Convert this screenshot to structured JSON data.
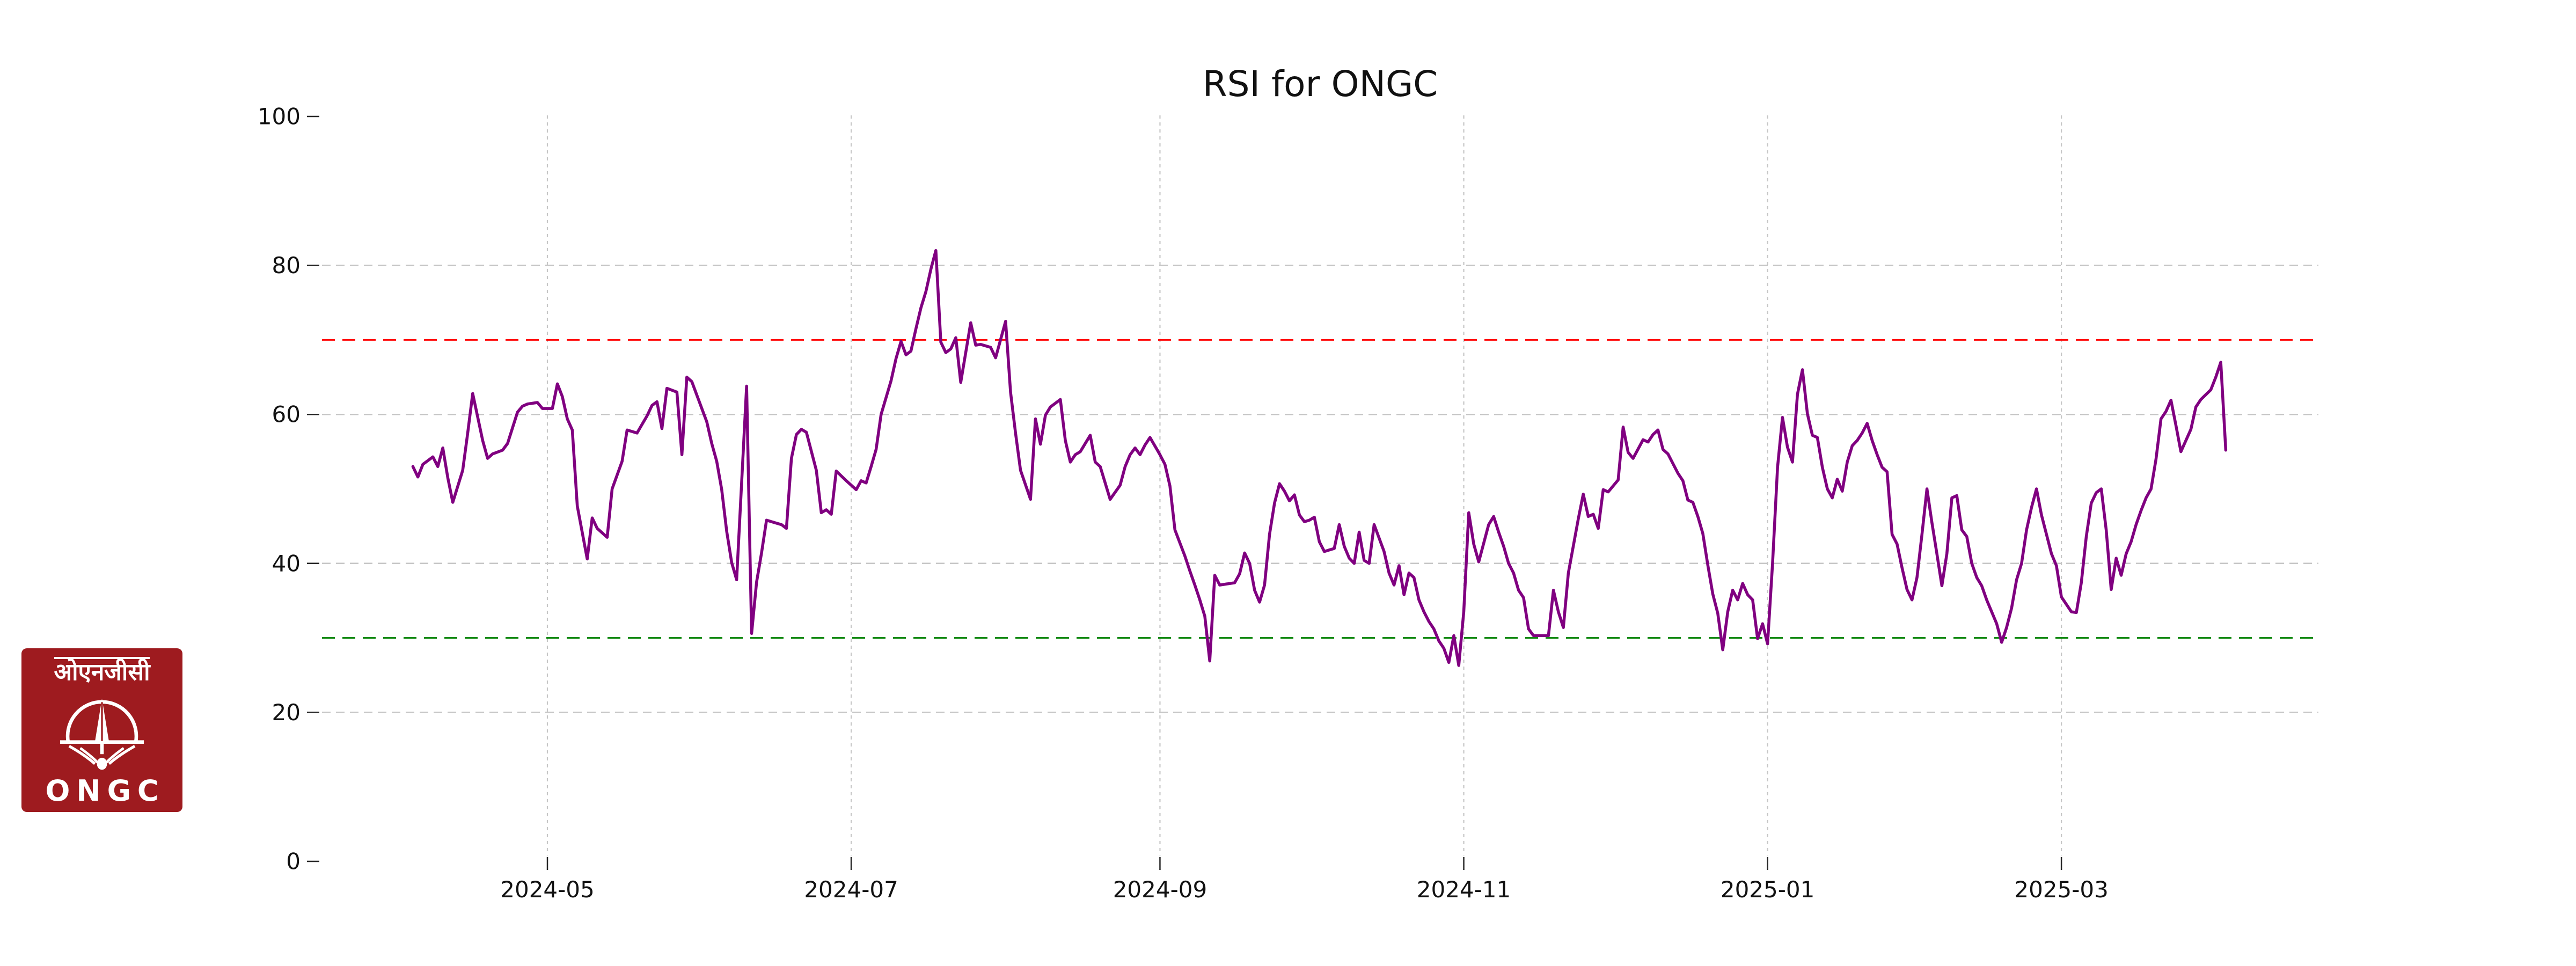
{
  "chart_data": {
    "type": "line",
    "title": "RSI for ONGC",
    "series_name": "RSI",
    "line_color": "#800080",
    "grid_color": "#c6c6c6",
    "tick_color": "#262626",
    "text_color": "#111111",
    "ylim": [
      0,
      100
    ],
    "y_ticks": [
      0,
      20,
      40,
      60,
      80,
      100
    ],
    "grid_y_values": [
      20,
      40,
      60,
      80
    ],
    "x_tick_labels": [
      "2024-05",
      "2024-07",
      "2024-09",
      "2024-11",
      "2025-01",
      "2025-03"
    ],
    "x_tick_dates": [
      "2024-05-01",
      "2024-07-01",
      "2024-09-01",
      "2024-11-01",
      "2025-01-01",
      "2025-03-01"
    ],
    "overbought": {
      "value": 70,
      "color": "#ff0000"
    },
    "oversold": {
      "value": 30,
      "color": "#008000"
    },
    "legend": "none",
    "grid": "on",
    "points": [
      [
        "2024-04-04",
        53.0
      ],
      [
        "2024-04-05",
        51.6
      ],
      [
        "2024-04-06",
        53.3
      ],
      [
        "2024-04-07",
        53.8
      ],
      [
        "2024-04-08",
        54.3
      ],
      [
        "2024-04-09",
        53.0
      ],
      [
        "2024-04-10",
        55.5
      ],
      [
        "2024-04-11",
        51.5
      ],
      [
        "2024-04-12",
        48.2
      ],
      [
        "2024-04-14",
        52.5
      ],
      [
        "2024-04-15",
        57.5
      ],
      [
        "2024-04-16",
        62.8
      ],
      [
        "2024-04-18",
        56.5
      ],
      [
        "2024-04-19",
        54.1
      ],
      [
        "2024-04-20",
        54.7
      ],
      [
        "2024-04-22",
        55.2
      ],
      [
        "2024-04-23",
        56.1
      ],
      [
        "2024-04-25",
        60.3
      ],
      [
        "2024-04-26",
        61.1
      ],
      [
        "2024-04-27",
        61.4
      ],
      [
        "2024-04-29",
        61.6
      ],
      [
        "2024-04-30",
        60.8
      ],
      [
        "2024-05-02",
        60.8
      ],
      [
        "2024-05-03",
        64.1
      ],
      [
        "2024-05-04",
        62.4
      ],
      [
        "2024-05-05",
        59.4
      ],
      [
        "2024-05-06",
        57.9
      ],
      [
        "2024-05-07",
        47.7
      ],
      [
        "2024-05-09",
        40.6
      ],
      [
        "2024-05-10",
        46.1
      ],
      [
        "2024-05-11",
        44.7
      ],
      [
        "2024-05-13",
        43.5
      ],
      [
        "2024-05-14",
        50.0
      ],
      [
        "2024-05-16",
        53.7
      ],
      [
        "2024-05-17",
        57.9
      ],
      [
        "2024-05-19",
        57.5
      ],
      [
        "2024-05-21",
        59.8
      ],
      [
        "2024-05-22",
        61.2
      ],
      [
        "2024-05-23",
        61.7
      ],
      [
        "2024-05-24",
        58.1
      ],
      [
        "2024-05-25",
        63.5
      ],
      [
        "2024-05-27",
        63.0
      ],
      [
        "2024-05-28",
        54.6
      ],
      [
        "2024-05-29",
        65.0
      ],
      [
        "2024-05-30",
        64.4
      ],
      [
        "2024-06-02",
        59.0
      ],
      [
        "2024-06-03",
        56.1
      ],
      [
        "2024-06-04",
        53.7
      ],
      [
        "2024-06-05",
        49.9
      ],
      [
        "2024-06-06",
        44.3
      ],
      [
        "2024-06-07",
        40.1
      ],
      [
        "2024-06-08",
        37.8
      ],
      [
        "2024-06-10",
        63.8
      ],
      [
        "2024-06-11",
        30.6
      ],
      [
        "2024-06-12",
        37.5
      ],
      [
        "2024-06-13",
        41.4
      ],
      [
        "2024-06-14",
        45.8
      ],
      [
        "2024-06-15",
        45.6
      ],
      [
        "2024-06-17",
        45.2
      ],
      [
        "2024-06-18",
        44.7
      ],
      [
        "2024-06-19",
        54.1
      ],
      [
        "2024-06-20",
        57.3
      ],
      [
        "2024-06-21",
        58.0
      ],
      [
        "2024-06-22",
        57.6
      ],
      [
        "2024-06-24",
        52.5
      ],
      [
        "2024-06-25",
        46.8
      ],
      [
        "2024-06-26",
        47.2
      ],
      [
        "2024-06-27",
        46.6
      ],
      [
        "2024-06-28",
        52.4
      ],
      [
        "2024-06-30",
        51.1
      ],
      [
        "2024-07-01",
        50.5
      ],
      [
        "2024-07-02",
        49.9
      ],
      [
        "2024-07-03",
        51.1
      ],
      [
        "2024-07-04",
        50.8
      ],
      [
        "2024-07-05",
        53.0
      ],
      [
        "2024-07-06",
        55.3
      ],
      [
        "2024-07-07",
        60.0
      ],
      [
        "2024-07-09",
        64.5
      ],
      [
        "2024-07-10",
        67.5
      ],
      [
        "2024-07-11",
        69.8
      ],
      [
        "2024-07-12",
        68.0
      ],
      [
        "2024-07-13",
        68.5
      ],
      [
        "2024-07-14",
        71.5
      ],
      [
        "2024-07-15",
        74.3
      ],
      [
        "2024-07-16",
        76.5
      ],
      [
        "2024-07-17",
        79.5
      ],
      [
        "2024-07-18",
        82.0
      ],
      [
        "2024-07-19",
        69.7
      ],
      [
        "2024-07-20",
        68.3
      ],
      [
        "2024-07-21",
        68.8
      ],
      [
        "2024-07-22",
        70.3
      ],
      [
        "2024-07-23",
        64.3
      ],
      [
        "2024-07-25",
        72.3
      ],
      [
        "2024-07-26",
        69.3
      ],
      [
        "2024-07-27",
        69.4
      ],
      [
        "2024-07-29",
        69.0
      ],
      [
        "2024-07-30",
        67.6
      ],
      [
        "2024-08-01",
        72.5
      ],
      [
        "2024-08-02",
        63.0
      ],
      [
        "2024-08-03",
        57.5
      ],
      [
        "2024-08-04",
        52.5
      ],
      [
        "2024-08-06",
        48.6
      ],
      [
        "2024-08-07",
        59.4
      ],
      [
        "2024-08-08",
        56.0
      ],
      [
        "2024-08-09",
        59.9
      ],
      [
        "2024-08-10",
        61.0
      ],
      [
        "2024-08-12",
        62.0
      ],
      [
        "2024-08-13",
        56.5
      ],
      [
        "2024-08-14",
        53.6
      ],
      [
        "2024-08-15",
        54.6
      ],
      [
        "2024-08-16",
        55.0
      ],
      [
        "2024-08-18",
        57.2
      ],
      [
        "2024-08-19",
        53.6
      ],
      [
        "2024-08-20",
        53.0
      ],
      [
        "2024-08-22",
        48.6
      ],
      [
        "2024-08-24",
        50.5
      ],
      [
        "2024-08-25",
        53.0
      ],
      [
        "2024-08-26",
        54.6
      ],
      [
        "2024-08-27",
        55.5
      ],
      [
        "2024-08-28",
        54.6
      ],
      [
        "2024-08-29",
        55.9
      ],
      [
        "2024-08-30",
        56.9
      ],
      [
        "2024-09-01",
        54.6
      ],
      [
        "2024-09-02",
        53.3
      ],
      [
        "2024-09-03",
        50.4
      ],
      [
        "2024-09-04",
        44.5
      ],
      [
        "2024-09-06",
        41.0
      ],
      [
        "2024-09-07",
        39.0
      ],
      [
        "2024-09-08",
        37.1
      ],
      [
        "2024-09-09",
        35.1
      ],
      [
        "2024-09-10",
        32.9
      ],
      [
        "2024-09-11",
        26.9
      ],
      [
        "2024-09-12",
        38.4
      ],
      [
        "2024-09-13",
        37.1
      ],
      [
        "2024-09-16",
        37.4
      ],
      [
        "2024-09-17",
        38.6
      ],
      [
        "2024-09-18",
        41.4
      ],
      [
        "2024-09-19",
        40.0
      ],
      [
        "2024-09-20",
        36.4
      ],
      [
        "2024-09-21",
        34.8
      ],
      [
        "2024-09-22",
        37.1
      ],
      [
        "2024-09-23",
        43.9
      ],
      [
        "2024-09-24",
        48.1
      ],
      [
        "2024-09-25",
        50.7
      ],
      [
        "2024-09-26",
        49.7
      ],
      [
        "2024-09-27",
        48.4
      ],
      [
        "2024-09-28",
        49.2
      ],
      [
        "2024-09-29",
        46.5
      ],
      [
        "2024-09-30",
        45.6
      ],
      [
        "2024-10-01",
        45.8
      ],
      [
        "2024-10-02",
        46.2
      ],
      [
        "2024-10-03",
        42.9
      ],
      [
        "2024-10-04",
        41.6
      ],
      [
        "2024-10-05",
        41.8
      ],
      [
        "2024-10-06",
        42.0
      ],
      [
        "2024-10-07",
        45.2
      ],
      [
        "2024-10-08",
        42.3
      ],
      [
        "2024-10-09",
        40.7
      ],
      [
        "2024-10-10",
        40.0
      ],
      [
        "2024-10-11",
        44.2
      ],
      [
        "2024-10-12",
        40.4
      ],
      [
        "2024-10-13",
        40.0
      ],
      [
        "2024-10-14",
        45.2
      ],
      [
        "2024-10-16",
        41.6
      ],
      [
        "2024-10-17",
        38.7
      ],
      [
        "2024-10-18",
        37.1
      ],
      [
        "2024-10-19",
        39.7
      ],
      [
        "2024-10-20",
        35.8
      ],
      [
        "2024-10-21",
        38.7
      ],
      [
        "2024-10-22",
        38.1
      ],
      [
        "2024-10-23",
        35.1
      ],
      [
        "2024-10-24",
        33.5
      ],
      [
        "2024-10-25",
        32.2
      ],
      [
        "2024-10-26",
        31.2
      ],
      [
        "2024-10-27",
        29.6
      ],
      [
        "2024-10-28",
        28.6
      ],
      [
        "2024-10-29",
        26.7
      ],
      [
        "2024-10-30",
        30.3
      ],
      [
        "2024-10-31",
        26.3
      ],
      [
        "2024-11-01",
        33.5
      ],
      [
        "2024-11-02",
        46.8
      ],
      [
        "2024-11-03",
        42.6
      ],
      [
        "2024-11-04",
        40.2
      ],
      [
        "2024-11-06",
        45.2
      ],
      [
        "2024-11-07",
        46.3
      ],
      [
        "2024-11-08",
        44.2
      ],
      [
        "2024-11-09",
        42.3
      ],
      [
        "2024-11-10",
        40.0
      ],
      [
        "2024-11-11",
        38.7
      ],
      [
        "2024-11-12",
        36.4
      ],
      [
        "2024-11-13",
        35.4
      ],
      [
        "2024-11-14",
        31.2
      ],
      [
        "2024-11-15",
        30.3
      ],
      [
        "2024-11-18",
        30.3
      ],
      [
        "2024-11-19",
        36.4
      ],
      [
        "2024-11-20",
        33.5
      ],
      [
        "2024-11-21",
        31.4
      ],
      [
        "2024-11-22",
        38.7
      ],
      [
        "2024-11-24",
        46.0
      ],
      [
        "2024-11-25",
        49.3
      ],
      [
        "2024-11-26",
        46.3
      ],
      [
        "2024-11-27",
        46.6
      ],
      [
        "2024-11-28",
        44.7
      ],
      [
        "2024-11-29",
        49.9
      ],
      [
        "2024-11-30",
        49.6
      ],
      [
        "2024-12-02",
        51.2
      ],
      [
        "2024-12-03",
        58.3
      ],
      [
        "2024-12-04",
        54.9
      ],
      [
        "2024-12-05",
        54.1
      ],
      [
        "2024-12-07",
        56.6
      ],
      [
        "2024-12-08",
        56.3
      ],
      [
        "2024-12-09",
        57.3
      ],
      [
        "2024-12-10",
        57.9
      ],
      [
        "2024-12-11",
        55.3
      ],
      [
        "2024-12-12",
        54.7
      ],
      [
        "2024-12-14",
        52.1
      ],
      [
        "2024-12-15",
        51.1
      ],
      [
        "2024-12-16",
        48.5
      ],
      [
        "2024-12-17",
        48.2
      ],
      [
        "2024-12-18",
        46.3
      ],
      [
        "2024-12-19",
        44.0
      ],
      [
        "2024-12-20",
        39.8
      ],
      [
        "2024-12-21",
        35.9
      ],
      [
        "2024-12-22",
        33.3
      ],
      [
        "2024-12-23",
        28.4
      ],
      [
        "2024-12-24",
        33.5
      ],
      [
        "2024-12-25",
        36.4
      ],
      [
        "2024-12-26",
        35.1
      ],
      [
        "2024-12-27",
        37.3
      ],
      [
        "2024-12-28",
        35.8
      ],
      [
        "2024-12-29",
        35.1
      ],
      [
        "2024-12-30",
        29.9
      ],
      [
        "2024-12-31",
        31.9
      ],
      [
        "2025-01-01",
        29.2
      ],
      [
        "2025-01-02",
        40.0
      ],
      [
        "2025-01-03",
        52.9
      ],
      [
        "2025-01-04",
        59.6
      ],
      [
        "2025-01-05",
        55.6
      ],
      [
        "2025-01-06",
        53.6
      ],
      [
        "2025-01-07",
        62.7
      ],
      [
        "2025-01-08",
        66.0
      ],
      [
        "2025-01-09",
        60.1
      ],
      [
        "2025-01-10",
        57.2
      ],
      [
        "2025-01-11",
        56.9
      ],
      [
        "2025-01-12",
        52.9
      ],
      [
        "2025-01-13",
        50.0
      ],
      [
        "2025-01-14",
        48.8
      ],
      [
        "2025-01-15",
        51.3
      ],
      [
        "2025-01-16",
        49.7
      ],
      [
        "2025-01-17",
        53.6
      ],
      [
        "2025-01-18",
        55.8
      ],
      [
        "2025-01-19",
        56.5
      ],
      [
        "2025-01-20",
        57.5
      ],
      [
        "2025-01-21",
        58.8
      ],
      [
        "2025-01-22",
        56.5
      ],
      [
        "2025-01-23",
        54.6
      ],
      [
        "2025-01-24",
        52.9
      ],
      [
        "2025-01-25",
        52.3
      ],
      [
        "2025-01-26",
        43.9
      ],
      [
        "2025-01-27",
        42.6
      ],
      [
        "2025-01-28",
        39.4
      ],
      [
        "2025-01-29",
        36.5
      ],
      [
        "2025-01-30",
        35.1
      ],
      [
        "2025-01-31",
        38.1
      ],
      [
        "2025-02-01",
        43.9
      ],
      [
        "2025-02-02",
        50.0
      ],
      [
        "2025-02-03",
        45.5
      ],
      [
        "2025-02-04",
        41.3
      ],
      [
        "2025-02-05",
        37.0
      ],
      [
        "2025-02-06",
        41.3
      ],
      [
        "2025-02-07",
        48.8
      ],
      [
        "2025-02-08",
        49.1
      ],
      [
        "2025-02-09",
        44.5
      ],
      [
        "2025-02-10",
        43.6
      ],
      [
        "2025-02-11",
        40.0
      ],
      [
        "2025-02-12",
        38.1
      ],
      [
        "2025-02-13",
        37.0
      ],
      [
        "2025-02-14",
        35.1
      ],
      [
        "2025-02-15",
        33.5
      ],
      [
        "2025-02-16",
        31.9
      ],
      [
        "2025-02-17",
        29.4
      ],
      [
        "2025-02-18",
        31.4
      ],
      [
        "2025-02-19",
        34.0
      ],
      [
        "2025-02-20",
        37.8
      ],
      [
        "2025-02-21",
        40.0
      ],
      [
        "2025-02-22",
        44.5
      ],
      [
        "2025-02-23",
        47.5
      ],
      [
        "2025-02-24",
        50.0
      ],
      [
        "2025-02-25",
        46.5
      ],
      [
        "2025-02-26",
        43.9
      ],
      [
        "2025-02-27",
        41.3
      ],
      [
        "2025-02-28",
        39.7
      ],
      [
        "2025-03-01",
        35.5
      ],
      [
        "2025-03-03",
        33.5
      ],
      [
        "2025-03-04",
        33.4
      ],
      [
        "2025-03-05",
        37.4
      ],
      [
        "2025-03-06",
        43.6
      ],
      [
        "2025-03-07",
        48.1
      ],
      [
        "2025-03-08",
        49.5
      ],
      [
        "2025-03-09",
        50.0
      ],
      [
        "2025-03-10",
        44.5
      ],
      [
        "2025-03-11",
        36.5
      ],
      [
        "2025-03-12",
        40.7
      ],
      [
        "2025-03-13",
        38.4
      ],
      [
        "2025-03-14",
        41.3
      ],
      [
        "2025-03-15",
        42.9
      ],
      [
        "2025-03-16",
        45.2
      ],
      [
        "2025-03-17",
        47.1
      ],
      [
        "2025-03-18",
        48.8
      ],
      [
        "2025-03-19",
        50.0
      ],
      [
        "2025-03-20",
        54.0
      ],
      [
        "2025-03-21",
        59.4
      ],
      [
        "2025-03-22",
        60.4
      ],
      [
        "2025-03-23",
        61.9
      ],
      [
        "2025-03-24",
        58.5
      ],
      [
        "2025-03-25",
        55.0
      ],
      [
        "2025-03-27",
        58.0
      ],
      [
        "2025-03-28",
        61.0
      ],
      [
        "2025-03-29",
        62.0
      ],
      [
        "2025-03-31",
        63.3
      ],
      [
        "2025-04-01",
        65.0
      ],
      [
        "2025-04-02",
        67.0
      ],
      [
        "2025-04-03",
        55.2
      ]
    ]
  },
  "logo": {
    "hindi_text": "ओएनजीसी",
    "latin_text": "ONGC",
    "bg_color": "#9e1b1f",
    "fg_color": "#ffffff"
  }
}
